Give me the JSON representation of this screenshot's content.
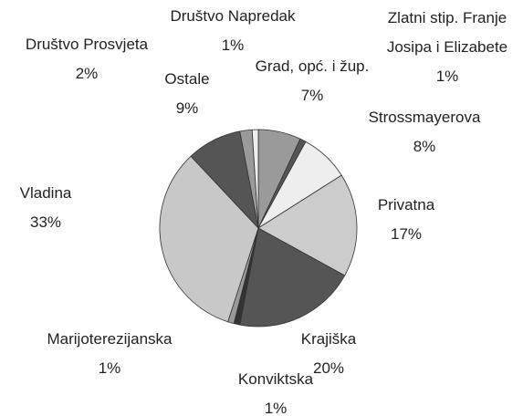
{
  "chart_data": {
    "type": "pie",
    "categories": [
      "Grad, opć. i žup.",
      "Zlatni stip. Franje Josipa i Elizabete",
      "Strossmayerova",
      "Privatna",
      "Krajiška",
      "Konviktska",
      "Marijoterezijanska",
      "Vladina",
      "Ostale",
      "Društvo Prosvjeta",
      "Društvo Napredak"
    ],
    "values": [
      7,
      1,
      8,
      17,
      20,
      1,
      1,
      33,
      9,
      2,
      1
    ],
    "value_labels": [
      "7%",
      "1%",
      "8%",
      "17%",
      "20%",
      "1%",
      "1%",
      "33%",
      "9%",
      "2%",
      "1%"
    ],
    "colors": [
      "#9a9a9a",
      "#555555",
      "#eeeeee",
      "#cccccc",
      "#555555",
      "#333333",
      "#9a9a9a",
      "#c8c8c8",
      "#555555",
      "#9a9a9a",
      "#eeeeee"
    ]
  }
}
